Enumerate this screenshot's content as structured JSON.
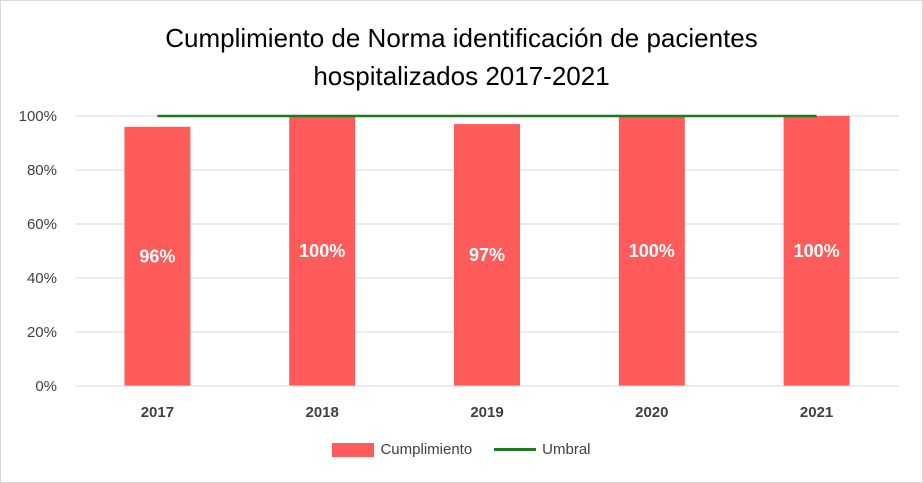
{
  "chart_data": {
    "type": "bar",
    "title_line1": "Cumplimiento de Norma identificación de pacientes",
    "title_line2": "hospitalizados 2017-2021",
    "categories": [
      "2017",
      "2018",
      "2019",
      "2020",
      "2021"
    ],
    "series": [
      {
        "name": "Cumplimiento",
        "type": "bar",
        "values": [
          0.96,
          1.0,
          0.97,
          1.0,
          1.0
        ],
        "labels": [
          "96%",
          "100%",
          "97%",
          "100%",
          "100%"
        ],
        "color": "#ff5b5b"
      },
      {
        "name": "Umbral",
        "type": "line",
        "values": [
          1.0,
          1.0,
          1.0,
          1.0,
          1.0
        ],
        "color": "#1f7a1f"
      }
    ],
    "yticks": [
      "0%",
      "20%",
      "40%",
      "60%",
      "80%",
      "100%"
    ],
    "ylim": [
      0,
      1
    ],
    "grid": true,
    "legend_position": "bottom"
  }
}
